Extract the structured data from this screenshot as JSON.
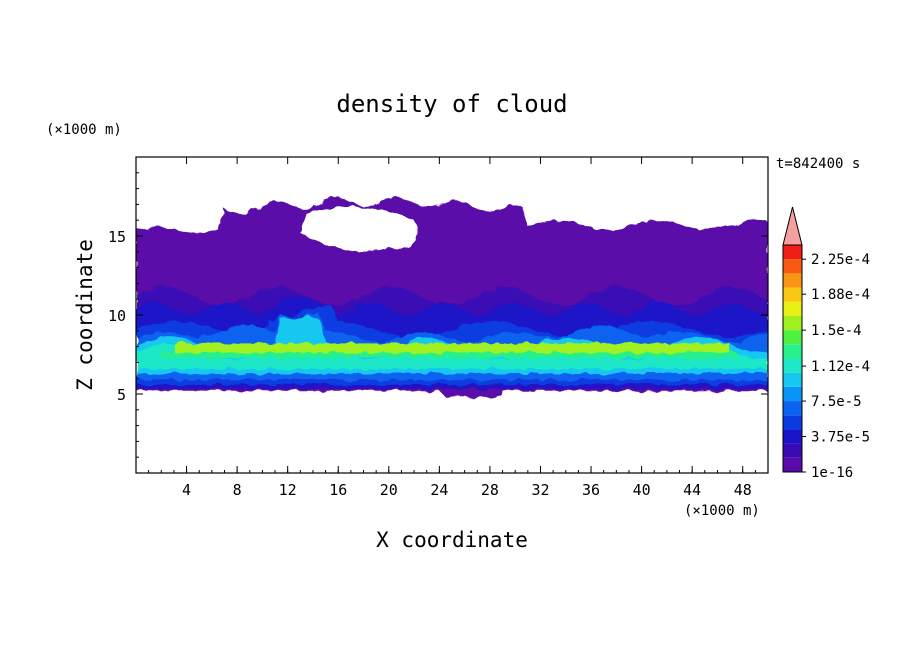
{
  "chart_data": {
    "type": "heatmap",
    "title": "density of cloud",
    "time_label": "t=842400 s",
    "xlabel": "X coordinate",
    "ylabel": "Z coordinate",
    "x_unit": "(×1000 m)",
    "y_unit": "(×1000 m)",
    "xlim": [
      0,
      50
    ],
    "ylim": [
      0,
      20
    ],
    "x_ticks": [
      4,
      8,
      12,
      16,
      20,
      24,
      28,
      32,
      36,
      40,
      44,
      48
    ],
    "y_ticks": [
      5,
      10,
      15
    ],
    "colorbar": {
      "tick_labels": [
        "2.25e-4",
        "1.88e-4",
        "1.5e-4",
        "1.12e-4",
        "7.5e-5",
        "3.75e-5",
        "1e-16"
      ],
      "tick_values": [
        0.000225,
        0.000188,
        0.00015,
        0.000112,
        7.5e-05,
        3.75e-05,
        1e-16
      ],
      "colors": [
        "#5a0aa8",
        "#3a0ab4",
        "#1a14c8",
        "#0a3ce0",
        "#0a64f0",
        "#0a94f8",
        "#14c8f0",
        "#1ee8c8",
        "#28f08c",
        "#50f040",
        "#a0f020",
        "#e8f014",
        "#f8c814",
        "#f89614",
        "#f85a14",
        "#f01e14"
      ],
      "extend_color": "#f4a0a0"
    },
    "cloud_layers": {
      "base_z": 5.2,
      "top_z_approx": 16.5,
      "max_density_region": "z 7-8.5, x 2-6, 16-22, 30-36, 42-48"
    }
  }
}
